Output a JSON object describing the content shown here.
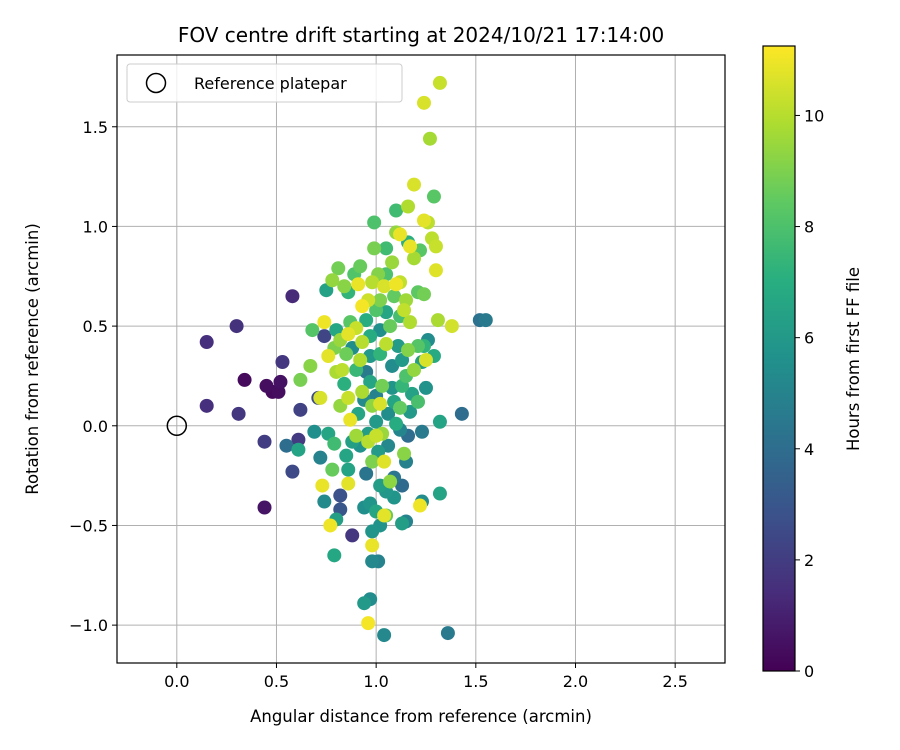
{
  "chart_data": {
    "type": "scatter",
    "title": "FOV centre drift starting at 2024/10/21 17:14:00",
    "xlabel": "Angular distance from reference (arcmin)",
    "ylabel": "Rotation from reference (arcmin)",
    "xlim": [
      -0.3,
      2.75
    ],
    "ylim": [
      -1.19,
      1.86
    ],
    "xticks": [
      0.0,
      0.5,
      1.0,
      1.5,
      2.0,
      2.5
    ],
    "xtick_labels": [
      "0.0",
      "0.5",
      "1.0",
      "1.5",
      "2.0",
      "2.5"
    ],
    "yticks": [
      -1.0,
      -0.5,
      0.0,
      0.5,
      1.0,
      1.5
    ],
    "ytick_labels": [
      "−1.0",
      "−0.5",
      "0.0",
      "0.5",
      "1.0",
      "1.5"
    ],
    "grid": true,
    "legend": {
      "placement": "upper-left",
      "entries": [
        "Reference platepar"
      ]
    },
    "reference_point": {
      "x": 0.0,
      "y": 0.0
    },
    "colorbar": {
      "label": "Hours from first FF file",
      "colormap": "viridis",
      "range": [
        0,
        11.25
      ],
      "ticks": [
        0,
        2,
        4,
        6,
        8,
        10
      ],
      "tick_labels": [
        "0",
        "2",
        "4",
        "6",
        "8",
        "10"
      ]
    },
    "points": [
      {
        "x": 0.15,
        "y": 0.42,
        "c": 1.5
      },
      {
        "x": 0.3,
        "y": 0.5,
        "c": 1.6
      },
      {
        "x": 0.15,
        "y": 0.1,
        "c": 1.5
      },
      {
        "x": 0.34,
        "y": 0.23,
        "c": 0.3
      },
      {
        "x": 0.31,
        "y": 0.06,
        "c": 1.8
      },
      {
        "x": 0.45,
        "y": 0.2,
        "c": 0.4
      },
      {
        "x": 0.48,
        "y": 0.17,
        "c": 0.3
      },
      {
        "x": 0.51,
        "y": 0.17,
        "c": 0.4
      },
      {
        "x": 0.52,
        "y": 0.22,
        "c": 0.5
      },
      {
        "x": 0.53,
        "y": 0.32,
        "c": 1.8
      },
      {
        "x": 0.44,
        "y": -0.08,
        "c": 2.0
      },
      {
        "x": 0.44,
        "y": -0.41,
        "c": 0.6
      },
      {
        "x": 0.55,
        "y": -0.1,
        "c": 4.0
      },
      {
        "x": 0.58,
        "y": -0.23,
        "c": 2.5
      },
      {
        "x": 0.58,
        "y": 0.65,
        "c": 1.3
      },
      {
        "x": 0.61,
        "y": -0.12,
        "c": 6.5
      },
      {
        "x": 0.61,
        "y": -0.07,
        "c": 1.9
      },
      {
        "x": 0.62,
        "y": 0.08,
        "c": 2.2
      },
      {
        "x": 0.62,
        "y": 0.23,
        "c": 8.9
      },
      {
        "x": 0.68,
        "y": 0.48,
        "c": 8.2
      },
      {
        "x": 0.71,
        "y": 0.14,
        "c": 2.6
      },
      {
        "x": 0.72,
        "y": 0.14,
        "c": 10.6
      },
      {
        "x": 0.74,
        "y": 0.52,
        "c": 11.0
      },
      {
        "x": 0.74,
        "y": 0.45,
        "c": 2.3
      },
      {
        "x": 0.75,
        "y": 0.68,
        "c": 6.4
      },
      {
        "x": 0.76,
        "y": 0.35,
        "c": 10.8
      },
      {
        "x": 0.78,
        "y": 0.73,
        "c": 9.4
      },
      {
        "x": 0.81,
        "y": 0.79,
        "c": 8.8
      },
      {
        "x": 0.73,
        "y": -0.3,
        "c": 10.9
      },
      {
        "x": 0.74,
        "y": -0.38,
        "c": 5.3
      },
      {
        "x": 0.77,
        "y": -0.5,
        "c": 11.0
      },
      {
        "x": 0.79,
        "y": -0.65,
        "c": 6.7
      },
      {
        "x": 0.82,
        "y": -0.42,
        "c": 3.0
      },
      {
        "x": 0.82,
        "y": -0.35,
        "c": 2.8
      },
      {
        "x": 0.86,
        "y": -0.29,
        "c": 10.8
      },
      {
        "x": 0.88,
        "y": -0.55,
        "c": 1.8
      },
      {
        "x": 0.94,
        "y": -0.89,
        "c": 6.0
      },
      {
        "x": 0.97,
        "y": -0.87,
        "c": 5.4
      },
      {
        "x": 0.96,
        "y": -0.99,
        "c": 11.1
      },
      {
        "x": 0.98,
        "y": -0.6,
        "c": 10.9
      },
      {
        "x": 0.98,
        "y": -0.68,
        "c": 5.2
      },
      {
        "x": 1.01,
        "y": -0.68,
        "c": 5.0
      },
      {
        "x": 1.04,
        "y": -1.05,
        "c": 5.2
      },
      {
        "x": 1.04,
        "y": -0.45,
        "c": 10.8
      },
      {
        "x": 1.36,
        "y": -1.04,
        "c": 4.6
      },
      {
        "x": 1.13,
        "y": -0.49,
        "c": 6.2
      },
      {
        "x": 1.15,
        "y": -0.48,
        "c": 5.0
      },
      {
        "x": 1.22,
        "y": -0.4,
        "c": 11.0
      },
      {
        "x": 1.23,
        "y": -0.38,
        "c": 5.4
      },
      {
        "x": 1.32,
        "y": -0.34,
        "c": 6.5
      },
      {
        "x": 1.23,
        "y": -0.03,
        "c": 4.6
      },
      {
        "x": 1.32,
        "y": 0.02,
        "c": 6.5
      },
      {
        "x": 1.43,
        "y": 0.06,
        "c": 4.0
      },
      {
        "x": 1.52,
        "y": 0.53,
        "c": 4.2
      },
      {
        "x": 1.55,
        "y": 0.53,
        "c": 4.6
      },
      {
        "x": 1.38,
        "y": 0.5,
        "c": 10.5
      },
      {
        "x": 1.31,
        "y": 0.53,
        "c": 9.8
      },
      {
        "x": 1.32,
        "y": 1.72,
        "c": 10.3
      },
      {
        "x": 1.24,
        "y": 1.62,
        "c": 10.6
      },
      {
        "x": 1.27,
        "y": 1.44,
        "c": 9.7
      },
      {
        "x": 1.29,
        "y": 1.15,
        "c": 8.3
      },
      {
        "x": 1.19,
        "y": 1.21,
        "c": 10.6
      },
      {
        "x": 1.16,
        "y": 1.1,
        "c": 9.9
      },
      {
        "x": 1.1,
        "y": 1.08,
        "c": 7.7
      },
      {
        "x": 1.24,
        "y": 1.03,
        "c": 10.8
      },
      {
        "x": 1.26,
        "y": 1.02,
        "c": 10.1
      },
      {
        "x": 0.99,
        "y": 1.02,
        "c": 8.0
      },
      {
        "x": 1.28,
        "y": 0.94,
        "c": 10.1
      },
      {
        "x": 1.3,
        "y": 0.9,
        "c": 10.3
      },
      {
        "x": 1.17,
        "y": 0.9,
        "c": 10.9
      },
      {
        "x": 1.22,
        "y": 0.88,
        "c": 8.3
      },
      {
        "x": 1.19,
        "y": 0.84,
        "c": 9.7
      },
      {
        "x": 1.3,
        "y": 0.78,
        "c": 10.7
      },
      {
        "x": 1.1,
        "y": 0.97,
        "c": 9.4
      },
      {
        "x": 1.12,
        "y": 0.96,
        "c": 10.9
      },
      {
        "x": 0.99,
        "y": 0.89,
        "c": 8.9
      },
      {
        "x": 1.05,
        "y": 0.89,
        "c": 7.7
      },
      {
        "x": 1.08,
        "y": 0.82,
        "c": 9.5
      },
      {
        "x": 0.92,
        "y": 0.8,
        "c": 8.6
      },
      {
        "x": 0.98,
        "y": 0.72,
        "c": 10.0
      },
      {
        "x": 0.91,
        "y": 0.71,
        "c": 10.9
      },
      {
        "x": 0.86,
        "y": 0.67,
        "c": 7.3
      },
      {
        "x": 0.84,
        "y": 0.7,
        "c": 9.2
      },
      {
        "x": 1.1,
        "y": 0.71,
        "c": 11.0
      },
      {
        "x": 1.02,
        "y": 0.63,
        "c": 9.0
      },
      {
        "x": 0.96,
        "y": 0.63,
        "c": 10.4
      },
      {
        "x": 0.93,
        "y": 0.6,
        "c": 11.1
      },
      {
        "x": 1.14,
        "y": 0.58,
        "c": 10.2
      },
      {
        "x": 1.21,
        "y": 0.67,
        "c": 8.4
      },
      {
        "x": 1.17,
        "y": 0.52,
        "c": 9.9
      },
      {
        "x": 0.87,
        "y": 0.52,
        "c": 8.3
      },
      {
        "x": 0.86,
        "y": 0.46,
        "c": 10.8
      },
      {
        "x": 0.8,
        "y": 0.48,
        "c": 6.7
      },
      {
        "x": 0.82,
        "y": 0.43,
        "c": 9.5
      },
      {
        "x": 0.85,
        "y": 0.36,
        "c": 8.7
      },
      {
        "x": 0.79,
        "y": 0.39,
        "c": 9.0
      },
      {
        "x": 0.83,
        "y": 0.28,
        "c": 10.1
      },
      {
        "x": 0.8,
        "y": 0.27,
        "c": 9.8
      },
      {
        "x": 0.84,
        "y": 0.21,
        "c": 7.1
      },
      {
        "x": 0.86,
        "y": 0.14,
        "c": 10.3
      },
      {
        "x": 0.82,
        "y": 0.1,
        "c": 9.4
      },
      {
        "x": 0.87,
        "y": 0.03,
        "c": 10.9
      },
      {
        "x": 0.9,
        "y": -0.05,
        "c": 9.6
      },
      {
        "x": 0.85,
        "y": -0.15,
        "c": 6.6
      },
      {
        "x": 0.86,
        "y": -0.22,
        "c": 6.5
      },
      {
        "x": 0.94,
        "y": -0.41,
        "c": 5.6
      },
      {
        "x": 0.97,
        "y": -0.39,
        "c": 5.8
      },
      {
        "x": 1.0,
        "y": -0.43,
        "c": 6.6
      },
      {
        "x": 0.98,
        "y": -0.53,
        "c": 5.8
      },
      {
        "x": 1.02,
        "y": -0.5,
        "c": 5.7
      },
      {
        "x": 0.95,
        "y": -0.24,
        "c": 4.3
      },
      {
        "x": 1.02,
        "y": -0.3,
        "c": 6.2
      },
      {
        "x": 1.07,
        "y": -0.28,
        "c": 9.3
      },
      {
        "x": 1.05,
        "y": -0.33,
        "c": 5.9
      },
      {
        "x": 1.09,
        "y": -0.26,
        "c": 4.4
      },
      {
        "x": 1.13,
        "y": -0.3,
        "c": 3.9
      },
      {
        "x": 1.14,
        "y": -0.14,
        "c": 9.2
      },
      {
        "x": 1.15,
        "y": -0.18,
        "c": 4.9
      },
      {
        "x": 1.04,
        "y": -0.18,
        "c": 10.7
      },
      {
        "x": 0.98,
        "y": -0.18,
        "c": 9.0
      },
      {
        "x": 0.96,
        "y": -0.04,
        "c": 6.2
      },
      {
        "x": 1.0,
        "y": -0.05,
        "c": 10.3
      },
      {
        "x": 1.03,
        "y": -0.04,
        "c": 9.5
      },
      {
        "x": 1.12,
        "y": -0.02,
        "c": 5.1
      },
      {
        "x": 1.16,
        "y": -0.05,
        "c": 4.0
      },
      {
        "x": 1.17,
        "y": 0.07,
        "c": 6.0
      },
      {
        "x": 1.12,
        "y": 0.09,
        "c": 8.5
      },
      {
        "x": 1.09,
        "y": 0.12,
        "c": 6.6
      },
      {
        "x": 1.02,
        "y": 0.11,
        "c": 10.6
      },
      {
        "x": 0.98,
        "y": 0.1,
        "c": 9.3
      },
      {
        "x": 0.94,
        "y": 0.13,
        "c": 5.3
      },
      {
        "x": 0.93,
        "y": 0.17,
        "c": 9.8
      },
      {
        "x": 0.97,
        "y": 0.22,
        "c": 6.6
      },
      {
        "x": 1.03,
        "y": 0.2,
        "c": 8.8
      },
      {
        "x": 1.08,
        "y": 0.19,
        "c": 5.8
      },
      {
        "x": 1.13,
        "y": 0.2,
        "c": 7.4
      },
      {
        "x": 1.15,
        "y": 0.25,
        "c": 8.0
      },
      {
        "x": 1.19,
        "y": 0.28,
        "c": 9.4
      },
      {
        "x": 1.23,
        "y": 0.32,
        "c": 6.3
      },
      {
        "x": 1.25,
        "y": 0.33,
        "c": 10.6
      },
      {
        "x": 1.29,
        "y": 0.35,
        "c": 6.8
      },
      {
        "x": 1.21,
        "y": 0.4,
        "c": 8.2
      },
      {
        "x": 1.16,
        "y": 0.38,
        "c": 9.1
      },
      {
        "x": 1.11,
        "y": 0.4,
        "c": 6.1
      },
      {
        "x": 1.05,
        "y": 0.41,
        "c": 10.1
      },
      {
        "x": 1.02,
        "y": 0.36,
        "c": 7.3
      },
      {
        "x": 0.97,
        "y": 0.35,
        "c": 6.0
      },
      {
        "x": 0.92,
        "y": 0.33,
        "c": 9.9
      },
      {
        "x": 0.9,
        "y": 0.28,
        "c": 7.5
      },
      {
        "x": 0.93,
        "y": 0.42,
        "c": 10.0
      },
      {
        "x": 0.97,
        "y": 0.45,
        "c": 6.9
      },
      {
        "x": 1.02,
        "y": 0.48,
        "c": 5.6
      },
      {
        "x": 1.07,
        "y": 0.5,
        "c": 8.6
      },
      {
        "x": 1.12,
        "y": 0.55,
        "c": 7.8
      },
      {
        "x": 1.05,
        "y": 0.57,
        "c": 6.6
      },
      {
        "x": 1.0,
        "y": 0.58,
        "c": 8.1
      },
      {
        "x": 0.95,
        "y": 0.53,
        "c": 7.0
      },
      {
        "x": 0.9,
        "y": 0.49,
        "c": 10.3
      },
      {
        "x": 0.88,
        "y": 0.39,
        "c": 5.5
      },
      {
        "x": 0.95,
        "y": 0.27,
        "c": 4.6
      },
      {
        "x": 1.0,
        "y": 0.15,
        "c": 5.0
      },
      {
        "x": 1.06,
        "y": 0.06,
        "c": 5.5
      },
      {
        "x": 1.1,
        "y": 0.01,
        "c": 6.9
      },
      {
        "x": 1.06,
        "y": -0.1,
        "c": 5.2
      },
      {
        "x": 1.01,
        "y": -0.13,
        "c": 6.1
      },
      {
        "x": 0.92,
        "y": -0.1,
        "c": 5.7
      },
      {
        "x": 0.88,
        "y": -0.08,
        "c": 6.3
      },
      {
        "x": 0.91,
        "y": 0.06,
        "c": 6.6
      },
      {
        "x": 1.08,
        "y": 0.3,
        "c": 5.4
      },
      {
        "x": 1.13,
        "y": 0.33,
        "c": 6.0
      },
      {
        "x": 1.18,
        "y": 0.16,
        "c": 6.4
      },
      {
        "x": 1.21,
        "y": 0.12,
        "c": 7.9
      },
      {
        "x": 1.25,
        "y": 0.19,
        "c": 5.7
      },
      {
        "x": 1.24,
        "y": 0.4,
        "c": 7.3
      },
      {
        "x": 1.26,
        "y": 0.43,
        "c": 5.4
      },
      {
        "x": 1.15,
        "y": 0.63,
        "c": 9.6
      },
      {
        "x": 1.09,
        "y": 0.65,
        "c": 8.5
      },
      {
        "x": 1.04,
        "y": 0.7,
        "c": 10.6
      },
      {
        "x": 1.01,
        "y": 0.76,
        "c": 9.1
      },
      {
        "x": 1.05,
        "y": 0.76,
        "c": 8.0
      },
      {
        "x": 1.12,
        "y": 0.72,
        "c": 10.2
      },
      {
        "x": 1.16,
        "y": 0.92,
        "c": 7.1
      },
      {
        "x": 1.24,
        "y": 0.66,
        "c": 8.8
      },
      {
        "x": 0.76,
        "y": -0.04,
        "c": 6.6
      },
      {
        "x": 0.79,
        "y": -0.09,
        "c": 7.7
      },
      {
        "x": 0.78,
        "y": -0.22,
        "c": 8.6
      },
      {
        "x": 0.69,
        "y": -0.03,
        "c": 5.6
      },
      {
        "x": 0.72,
        "y": -0.16,
        "c": 5.0
      },
      {
        "x": 0.67,
        "y": 0.3,
        "c": 9.2
      },
      {
        "x": 0.89,
        "y": 0.76,
        "c": 8.1
      },
      {
        "x": 1.09,
        "y": -0.36,
        "c": 5.8
      },
      {
        "x": 1.05,
        "y": -0.45,
        "c": 8.6
      },
      {
        "x": 0.8,
        "y": -0.47,
        "c": 6.3
      },
      {
        "x": 0.96,
        "y": -0.08,
        "c": 10.0
      },
      {
        "x": 1.0,
        "y": 0.02,
        "c": 6.0
      }
    ]
  }
}
